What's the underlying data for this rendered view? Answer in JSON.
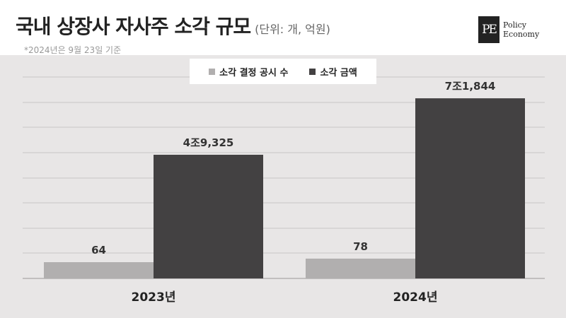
{
  "header": {
    "title": "국내 상장사 자사주 소각 규모",
    "unit": "(단위: 개, 억원)",
    "note": "*2024년은 9월 23일 기준"
  },
  "brand": {
    "mark": "PE",
    "line1": "Policy",
    "line2": "Economy"
  },
  "colors": {
    "count": "#b1afaf",
    "amount": "#434142",
    "grid": "#c9c6c6",
    "panel": "#e8e6e6"
  },
  "chart_data": {
    "type": "bar",
    "categories": [
      "2023년",
      "2024년"
    ],
    "series": [
      {
        "name": "소각 결정 공시 수",
        "values": [
          64,
          78
        ],
        "labels": [
          "64",
          "78"
        ]
      },
      {
        "name": "소각 금액",
        "values": [
          49325,
          71844
        ],
        "labels": [
          "4조9,325",
          "7조1,844"
        ]
      }
    ],
    "legend_position": "top-center",
    "grid": true
  }
}
